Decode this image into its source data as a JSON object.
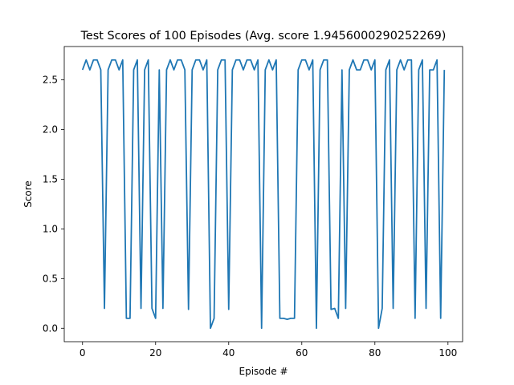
{
  "chart_data": {
    "type": "line",
    "title": "Test Scores of 100 Episodes (Avg. score 1.9456000290252269)",
    "xlabel": "Episode #",
    "ylabel": "Score",
    "xlim": [
      -5,
      104
    ],
    "ylim": [
      -0.135,
      2.835
    ],
    "xticks": [
      0,
      20,
      40,
      60,
      80,
      100
    ],
    "yticks": [
      0.0,
      0.5,
      1.0,
      1.5,
      2.0,
      2.5
    ],
    "xtick_labels": [
      "0",
      "20",
      "40",
      "60",
      "80",
      "100"
    ],
    "ytick_labels": [
      "0.0",
      "0.5",
      "1.0",
      "1.5",
      "2.0",
      "2.5"
    ],
    "grid": false,
    "series": [
      {
        "color": "#1f77b4",
        "x": [
          0,
          1,
          2,
          3,
          4,
          5,
          6,
          7,
          8,
          9,
          10,
          11,
          12,
          13,
          14,
          15,
          16,
          17,
          18,
          19,
          20,
          21,
          22,
          23,
          24,
          25,
          26,
          27,
          28,
          29,
          30,
          31,
          32,
          33,
          34,
          35,
          36,
          37,
          38,
          39,
          40,
          41,
          42,
          43,
          44,
          45,
          46,
          47,
          48,
          49,
          50,
          51,
          52,
          53,
          54,
          55,
          56,
          57,
          58,
          59,
          60,
          61,
          62,
          63,
          64,
          65,
          66,
          67,
          68,
          69,
          70,
          71,
          72,
          73,
          74,
          75,
          76,
          77,
          78,
          79,
          80,
          81,
          82,
          83,
          84,
          85,
          86,
          87,
          88,
          89,
          90,
          91,
          92,
          93,
          94,
          95,
          96,
          97,
          98,
          99
        ],
        "values": [
          2.6,
          2.7,
          2.6,
          2.7,
          2.7,
          2.6,
          0.2,
          2.6,
          2.7,
          2.7,
          2.6,
          2.7,
          0.1,
          0.1,
          2.6,
          2.7,
          0.2,
          2.6,
          2.7,
          0.2,
          0.1,
          2.6,
          0.2,
          2.6,
          2.7,
          2.6,
          2.7,
          2.7,
          2.6,
          0.19,
          2.6,
          2.7,
          2.7,
          2.6,
          2.7,
          0.0,
          0.1,
          2.6,
          2.7,
          2.7,
          0.19,
          2.6,
          2.7,
          2.7,
          2.6,
          2.7,
          2.7,
          2.6,
          2.7,
          0.0,
          2.6,
          2.7,
          2.6,
          2.7,
          0.1,
          0.1,
          0.09,
          0.1,
          0.1,
          2.6,
          2.7,
          2.7,
          2.6,
          2.7,
          0.0,
          2.6,
          2.7,
          2.7,
          0.19,
          0.2,
          0.1,
          2.6,
          0.2,
          2.6,
          2.7,
          2.6,
          2.6,
          2.7,
          2.7,
          2.6,
          2.7,
          0.0,
          0.2,
          2.6,
          2.7,
          0.2,
          2.6,
          2.7,
          2.6,
          2.7,
          2.7,
          0.1,
          2.6,
          2.7,
          0.2,
          2.6,
          2.6,
          2.7,
          0.1,
          2.6
        ]
      }
    ]
  }
}
